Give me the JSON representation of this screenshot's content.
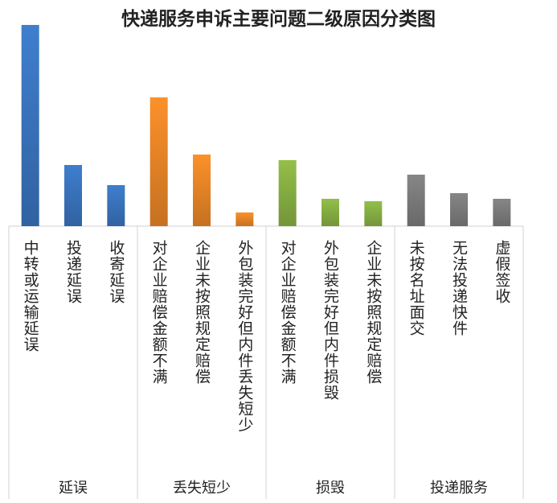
{
  "chart_data": {
    "type": "bar",
    "title": "快递服务申诉主要问题二级原因分类图",
    "xlabel": "",
    "ylabel": "",
    "grid": false,
    "legend": "none",
    "groups": [
      {
        "name": "延误",
        "color": "#3c78c4",
        "categories": [
          "中转或运输延误",
          "投递延误",
          "收寄延误"
        ],
        "values": [
          250,
          76,
          51
        ]
      },
      {
        "name": "丢失短少",
        "color": "#f08a28",
        "categories": [
          "对企业赔偿金额不满",
          "企业未按照规定赔偿",
          "外包装完好但内件丢失短少"
        ],
        "values": [
          160,
          89,
          17
        ]
      },
      {
        "name": "损毁",
        "color": "#8cb646",
        "categories": [
          "对企业赔偿金额不满",
          "外包装完好但内件损毁",
          "企业未按照规定赔偿"
        ],
        "values": [
          82,
          34,
          31
        ]
      },
      {
        "name": "投递服务",
        "color": "#808080",
        "categories": [
          "未按名址面交",
          "无法投递快件",
          "虚假签收"
        ],
        "values": [
          64,
          41,
          34
        ]
      }
    ],
    "ylim": [
      0,
      250
    ]
  }
}
